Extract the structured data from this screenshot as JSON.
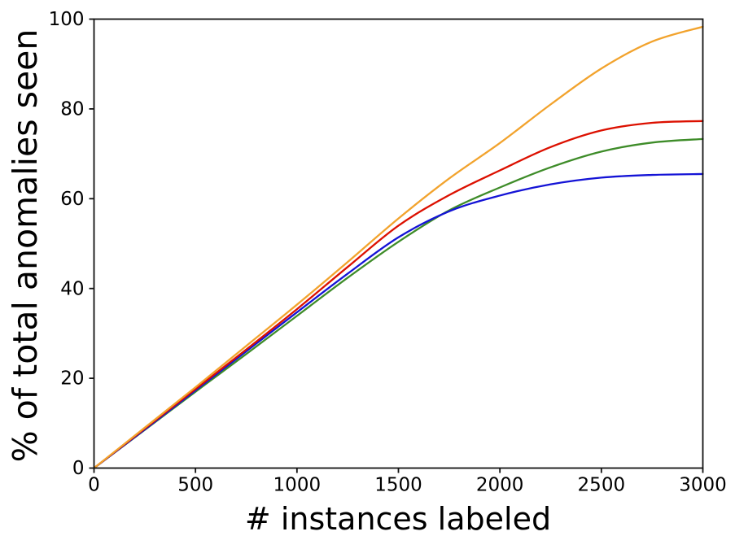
{
  "figure": {
    "background": "#ffffff",
    "axis_color": "#111111",
    "text_color": "#000000",
    "spine_width": 1.8,
    "tick_length": 6,
    "line_width": 2.3
  },
  "chart_data": {
    "type": "line",
    "title": "",
    "xlabel": "# instances labeled",
    "ylabel": "% of total anomalies seen",
    "xlim": [
      0,
      3000
    ],
    "ylim": [
      0,
      100
    ],
    "x_ticks": [
      0,
      500,
      1000,
      1500,
      2000,
      2500,
      3000
    ],
    "y_ticks": [
      0,
      20,
      40,
      60,
      80,
      100
    ],
    "grid": false,
    "legend_position": "none",
    "x": [
      0,
      250,
      500,
      750,
      1000,
      1250,
      1500,
      1750,
      2000,
      2250,
      2500,
      2750,
      3000
    ],
    "series": [
      {
        "name": "green",
        "color": "#3e8c29",
        "values": [
          0,
          8.5,
          17.0,
          25.4,
          33.9,
          42.4,
          50.4,
          57.4,
          62.5,
          67.0,
          70.5,
          72.5,
          73.3
        ]
      },
      {
        "name": "blue",
        "color": "#1413d6",
        "values": [
          0,
          8.6,
          17.3,
          26.0,
          34.7,
          43.3,
          51.4,
          57.2,
          60.7,
          63.2,
          64.7,
          65.3,
          65.5
        ]
      },
      {
        "name": "red",
        "color": "#dc1000",
        "values": [
          0,
          8.8,
          17.6,
          26.4,
          35.4,
          44.8,
          54.0,
          60.8,
          66.3,
          71.5,
          75.2,
          76.9,
          77.3
        ]
      },
      {
        "name": "orange",
        "color": "#f2a32d",
        "values": [
          0,
          9.0,
          18.0,
          27.2,
          36.4,
          45.9,
          55.6,
          64.5,
          72.4,
          81.0,
          89.0,
          95.0,
          98.3
        ]
      }
    ]
  },
  "layout_note": ""
}
